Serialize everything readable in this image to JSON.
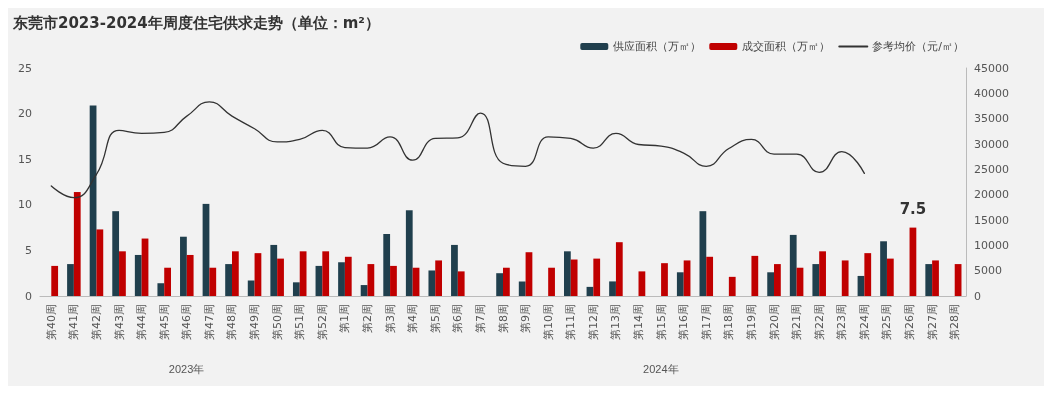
{
  "chart_data": {
    "type": "bar",
    "title": "东莞市2023-2024年周度住宅供求走势（单位：m²）",
    "categories": [
      "第40周",
      "第41周",
      "第42周",
      "第43周",
      "第44周",
      "第45周",
      "第46周",
      "第47周",
      "第48周",
      "第49周",
      "第50周",
      "第51周",
      "第52周",
      "第1周",
      "第2周",
      "第3周",
      "第4周",
      "第5周",
      "第6周",
      "第7周",
      "第8周",
      "第9周",
      "第10周",
      "第11周",
      "第12周",
      "第13周",
      "第14周",
      "第15周",
      "第16周",
      "第17周",
      "第18周",
      "第19周",
      "第20周",
      "第21周",
      "第22周",
      "第23周",
      "第24周",
      "第25周",
      "第26周",
      "第27周",
      "第28周"
    ],
    "series": [
      {
        "name": "供应面积（万㎡）",
        "color": "#203f4d",
        "values": [
          null,
          3.5,
          20.9,
          9.3,
          4.5,
          1.4,
          6.5,
          10.1,
          3.5,
          1.7,
          5.6,
          1.5,
          3.3,
          3.7,
          1.2,
          6.8,
          9.4,
          2.8,
          5.6,
          null,
          2.5,
          1.6,
          null,
          4.9,
          1.0,
          1.6,
          null,
          null,
          2.6,
          9.3,
          null,
          null,
          2.6,
          6.7,
          3.5,
          null,
          2.2,
          6.0,
          null,
          3.5,
          null
        ]
      },
      {
        "name": "成交面积（万㎡）",
        "color": "#c00000",
        "values": [
          3.3,
          11.4,
          7.3,
          4.9,
          6.3,
          3.1,
          4.5,
          3.1,
          4.9,
          4.7,
          4.1,
          4.9,
          4.9,
          4.3,
          3.5,
          3.3,
          3.1,
          3.9,
          2.7,
          null,
          3.1,
          4.8,
          3.1,
          4.0,
          4.1,
          5.9,
          2.7,
          3.6,
          3.9,
          4.3,
          2.1,
          4.4,
          3.5,
          3.1,
          4.9,
          3.9,
          4.7,
          4.1,
          7.5,
          3.9,
          3.5
        ],
        "value_labels": [
          null,
          null,
          null,
          null,
          null,
          null,
          null,
          null,
          null,
          null,
          null,
          null,
          null,
          null,
          null,
          null,
          null,
          null,
          null,
          null,
          null,
          null,
          null,
          null,
          null,
          null,
          null,
          null,
          null,
          null,
          null,
          null,
          null,
          null,
          null,
          null,
          null,
          null,
          "7.5",
          null,
          null
        ]
      },
      {
        "name": "参考均价（元/㎡）",
        "type": "line",
        "axis": "y2",
        "color": "#333333",
        "values": [
          21700,
          19400,
          24000,
          32700,
          32100,
          32300,
          35500,
          38300,
          35500,
          33000,
          30400,
          30900,
          32700,
          29300,
          29200,
          31400,
          26800,
          31100,
          31200,
          36100,
          26200,
          25600,
          31400,
          31100,
          29200,
          32100,
          29900,
          29600,
          28200,
          25600,
          29100,
          30900,
          28000,
          28000,
          24400,
          28500,
          24200,
          null,
          null,
          null,
          null
        ]
      }
    ],
    "ylim": [
      0,
      25
    ],
    "yticks": [
      0,
      5,
      10,
      15,
      20,
      25
    ],
    "y2lim": [
      0,
      45000
    ],
    "y2ticks": [
      0,
      5000,
      10000,
      15000,
      20000,
      25000,
      30000,
      35000,
      40000,
      45000
    ],
    "annotations": [
      "2023年",
      "2024年"
    ],
    "legend": "top right",
    "grid": false,
    "marker": "none",
    "line_style": "solid"
  }
}
